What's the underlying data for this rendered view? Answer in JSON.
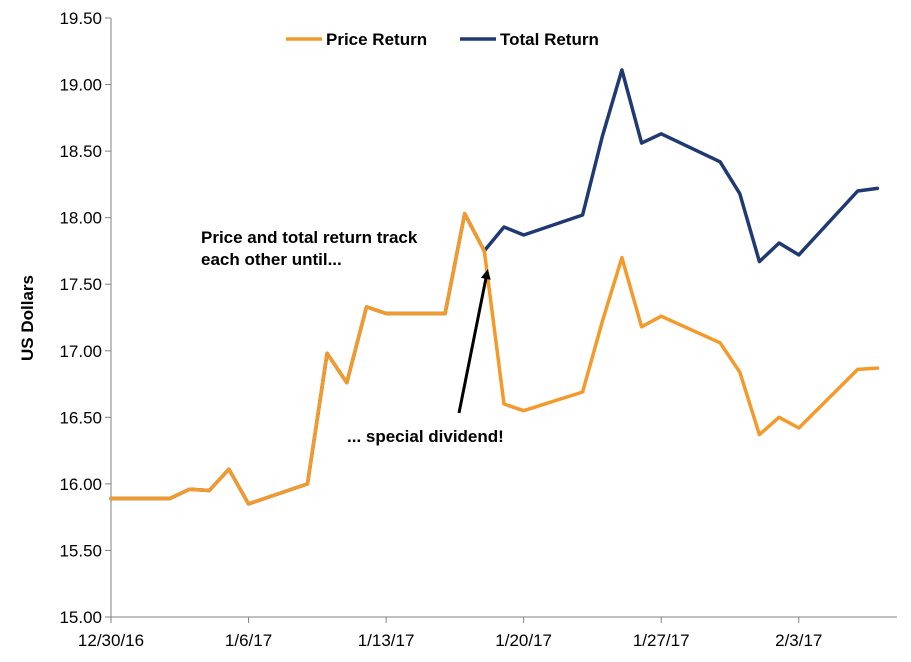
{
  "chart_data": {
    "type": "line",
    "title": "",
    "xlabel": "",
    "ylabel": "US Dollars",
    "ylim": [
      15.0,
      19.5
    ],
    "y_ticks": [
      "15.00",
      "15.50",
      "16.00",
      "16.50",
      "17.00",
      "17.50",
      "18.00",
      "18.50",
      "19.00",
      "19.50"
    ],
    "x_range": [
      "2016-12-30",
      "2017-02-08"
    ],
    "x_ticks": [
      {
        "date": "2016-12-30",
        "label": "12/30/16"
      },
      {
        "date": "2017-01-06",
        "label": "1/6/17"
      },
      {
        "date": "2017-01-13",
        "label": "1/13/17"
      },
      {
        "date": "2017-01-20",
        "label": "1/20/17"
      },
      {
        "date": "2017-01-27",
        "label": "1/27/17"
      },
      {
        "date": "2017-02-03",
        "label": "2/3/17"
      }
    ],
    "legend_position": "top-center",
    "grid": false,
    "series": [
      {
        "name": "Price Return",
        "color": "#F39A2B",
        "x": [
          "2016-12-30",
          "2017-01-01",
          "2017-01-02",
          "2017-01-03",
          "2017-01-04",
          "2017-01-05",
          "2017-01-06",
          "2017-01-09",
          "2017-01-10",
          "2017-01-11",
          "2017-01-12",
          "2017-01-13",
          "2017-01-16",
          "2017-01-17",
          "2017-01-18",
          "2017-01-19",
          "2017-01-20",
          "2017-01-23",
          "2017-01-24",
          "2017-01-25",
          "2017-01-26",
          "2017-01-27",
          "2017-01-30",
          "2017-01-31",
          "2017-02-01",
          "2017-02-02",
          "2017-02-03",
          "2017-02-06",
          "2017-02-07"
        ],
        "values": [
          15.89,
          15.89,
          15.89,
          15.96,
          15.95,
          16.11,
          15.85,
          16.0,
          16.98,
          16.76,
          17.33,
          17.28,
          17.28,
          18.03,
          17.75,
          16.6,
          16.55,
          16.69,
          17.22,
          17.7,
          17.18,
          17.26,
          17.06,
          16.84,
          16.37,
          16.5,
          16.42,
          16.86,
          16.87
        ]
      },
      {
        "name": "Total Return",
        "color": "#1F3A73",
        "x": [
          "2016-12-30",
          "2017-01-01",
          "2017-01-02",
          "2017-01-03",
          "2017-01-04",
          "2017-01-05",
          "2017-01-06",
          "2017-01-09",
          "2017-01-10",
          "2017-01-11",
          "2017-01-12",
          "2017-01-13",
          "2017-01-16",
          "2017-01-17",
          "2017-01-18",
          "2017-01-19",
          "2017-01-20",
          "2017-01-23",
          "2017-01-24",
          "2017-01-25",
          "2017-01-26",
          "2017-01-27",
          "2017-01-30",
          "2017-01-31",
          "2017-02-01",
          "2017-02-02",
          "2017-02-03",
          "2017-02-06",
          "2017-02-07"
        ],
        "values": [
          15.89,
          15.89,
          15.89,
          15.96,
          15.95,
          16.11,
          15.85,
          16.0,
          16.98,
          16.76,
          17.33,
          17.28,
          17.28,
          18.03,
          17.75,
          17.93,
          17.87,
          18.02,
          18.61,
          19.11,
          18.56,
          18.63,
          18.42,
          18.18,
          17.67,
          17.81,
          17.72,
          18.2,
          18.22
        ]
      }
    ],
    "annotations": [
      {
        "lines": [
          "Price and total return track",
          "each other until..."
        ]
      },
      {
        "lines": [
          "... special dividend!"
        ]
      }
    ]
  }
}
